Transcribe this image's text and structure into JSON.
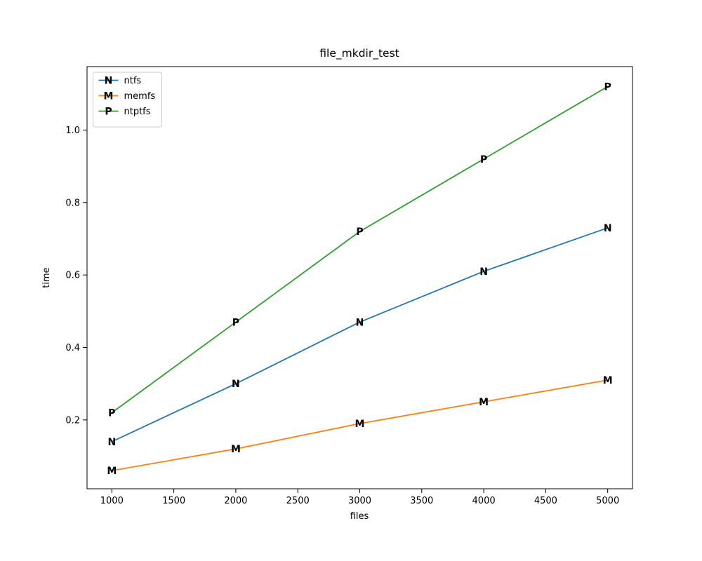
{
  "figure": {
    "background": "#ffffff",
    "frame_color": "#000000"
  },
  "chart_data": {
    "type": "line",
    "title": "file_mkdir_test",
    "xlabel": "files",
    "ylabel": "time",
    "x": [
      1000,
      2000,
      3000,
      4000,
      5000
    ],
    "series": [
      {
        "name": "ntfs",
        "color": "#1f77b4",
        "marker": "N",
        "values": [
          0.14,
          0.3,
          0.47,
          0.61,
          0.73
        ]
      },
      {
        "name": "memfs",
        "color": "#ff7f0e",
        "marker": "M",
        "values": [
          0.06,
          0.12,
          0.19,
          0.25,
          0.31
        ]
      },
      {
        "name": "ntptfs",
        "color": "#2ca02c",
        "marker": "P",
        "values": [
          0.22,
          0.47,
          0.72,
          0.92,
          1.12
        ]
      }
    ],
    "xticks": [
      1000,
      1500,
      2000,
      2500,
      3000,
      3500,
      4000,
      4500,
      5000
    ],
    "yticks": [
      0.2,
      0.4,
      0.6,
      0.8,
      1.0
    ],
    "xlim": [
      800,
      5200
    ],
    "ylim": [
      0.01,
      1.175
    ],
    "grid": false,
    "legend": {
      "position": "upper-left",
      "border_color": "#cccccc",
      "background": "#ffffff",
      "entries": [
        "ntfs",
        "memfs",
        "ntptfs"
      ]
    }
  }
}
